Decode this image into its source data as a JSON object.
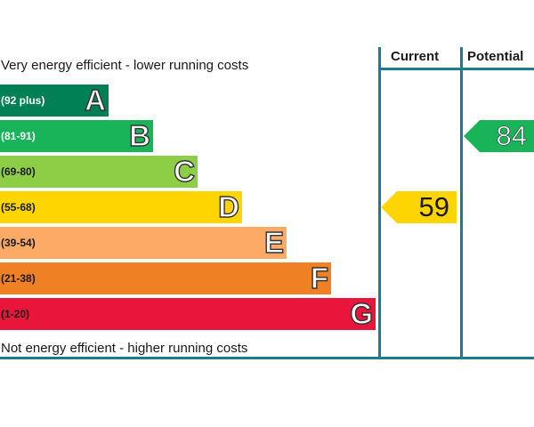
{
  "header": {
    "current_label": "Current",
    "potential_label": "Potential"
  },
  "captions": {
    "top": "Very energy efficient - lower running costs",
    "bottom": "Not energy efficient - higher running costs"
  },
  "chart_data": {
    "type": "bar",
    "categories": [
      "A",
      "B",
      "C",
      "D",
      "E",
      "F",
      "G"
    ],
    "bands": [
      {
        "letter": "A",
        "range": "(92 plus)",
        "color": "#008054",
        "text_color": "#ffffff"
      },
      {
        "letter": "B",
        "range": "(81-91)",
        "color": "#19b459",
        "text_color": "#ffffff"
      },
      {
        "letter": "C",
        "range": "(69-80)",
        "color": "#8dce46",
        "text_color": "#1a1a1a"
      },
      {
        "letter": "D",
        "range": "(55-68)",
        "color": "#ffd500",
        "text_color": "#1a1a1a"
      },
      {
        "letter": "E",
        "range": "(39-54)",
        "color": "#fcaa65",
        "text_color": "#1a1a1a"
      },
      {
        "letter": "F",
        "range": "(21-38)",
        "color": "#ef8023",
        "text_color": "#1a1a1a"
      },
      {
        "letter": "G",
        "range": "(1-20)",
        "color": "#e9153b",
        "text_color": "#1a1a1a"
      }
    ],
    "current": {
      "value": 59,
      "band": "D",
      "color": "#ffd500"
    },
    "potential": {
      "value": 84,
      "band": "B",
      "color": "#19b459"
    }
  }
}
